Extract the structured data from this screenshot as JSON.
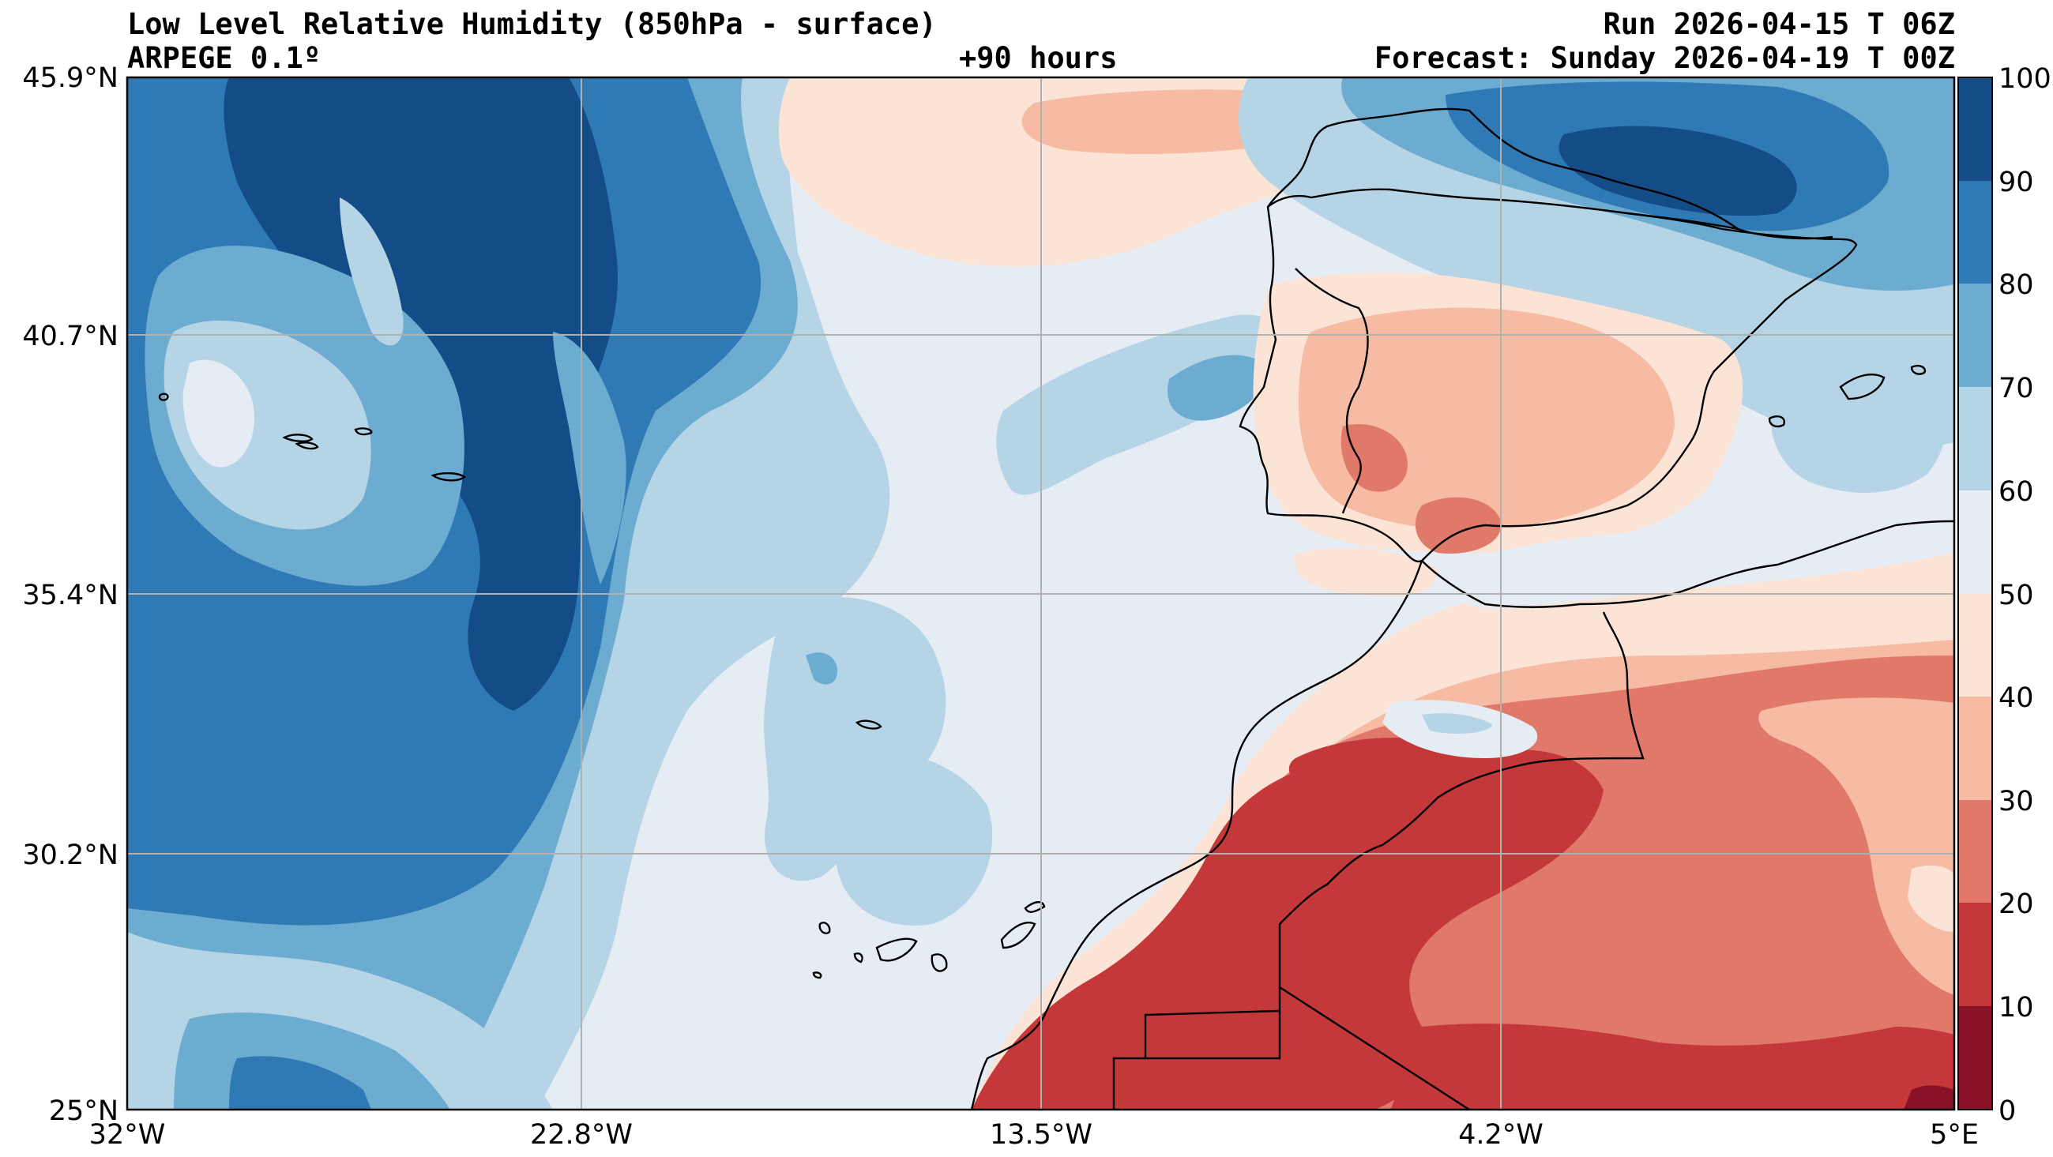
{
  "header": {
    "title": "Low Level Relative Humidity (850hPa - surface)",
    "model": "ARPEGE 0.1º",
    "lead": "+90 hours",
    "run": "Run 2026-04-15 T 06Z",
    "forecast": "Forecast: Sunday 2026-04-19 T 00Z"
  },
  "map": {
    "lat_labels": [
      "45.9°N",
      "40.7°N",
      "35.4°N",
      "30.2°N",
      "25°N"
    ],
    "lon_labels": [
      "32°W",
      "22.8°W",
      "13.5°W",
      "4.2°W",
      "5°E"
    ],
    "lat_range": [
      25,
      45.9
    ],
    "lon_range": [
      -32,
      5
    ]
  },
  "colorbar": {
    "ticks": [
      "0",
      "10",
      "20",
      "30",
      "40",
      "50",
      "60",
      "70",
      "80",
      "90",
      "100"
    ],
    "colors": [
      "#8a1228",
      "#c5383a",
      "#e0796a",
      "#f6bba2",
      "#fbe3d6",
      "#e5ecf3",
      "#b5d5e7",
      "#6dacd1",
      "#2f79b5",
      "#134c87"
    ]
  }
}
